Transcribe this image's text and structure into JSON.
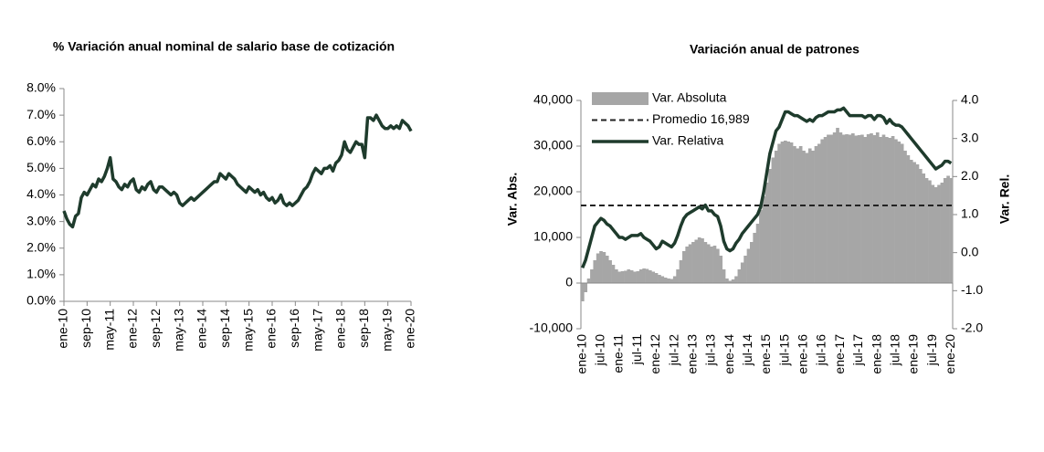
{
  "chart_data": [
    {
      "type": "line",
      "title": "% Variación anual nominal de salario base de cotización",
      "categories": [
        "ene-10",
        null,
        null,
        null,
        null,
        null,
        null,
        null,
        "sep-10",
        null,
        null,
        null,
        null,
        null,
        null,
        null,
        "may-11",
        null,
        null,
        null,
        null,
        null,
        null,
        null,
        "ene-12",
        null,
        null,
        null,
        null,
        null,
        null,
        null,
        "sep-12",
        null,
        null,
        null,
        null,
        null,
        null,
        null,
        "may-13",
        null,
        null,
        null,
        null,
        null,
        null,
        null,
        "ene-14",
        null,
        null,
        null,
        null,
        null,
        null,
        null,
        "sep-14",
        null,
        null,
        null,
        null,
        null,
        null,
        null,
        "may-15",
        null,
        null,
        null,
        null,
        null,
        null,
        null,
        "ene-16",
        null,
        null,
        null,
        null,
        null,
        null,
        null,
        "sep-16",
        null,
        null,
        null,
        null,
        null,
        null,
        null,
        "may-17",
        null,
        null,
        null,
        null,
        null,
        null,
        null,
        "ene-18",
        null,
        null,
        null,
        null,
        null,
        null,
        null,
        "sep-18",
        null,
        null,
        null,
        null,
        null,
        null,
        null,
        "may-19",
        null,
        null,
        null,
        null,
        null,
        null,
        null,
        "ene-20"
      ],
      "values": [
        3.4,
        3.1,
        2.9,
        2.8,
        3.2,
        3.3,
        3.9,
        4.1,
        4.0,
        4.2,
        4.4,
        4.3,
        4.6,
        4.5,
        4.7,
        5.0,
        5.4,
        4.6,
        4.5,
        4.3,
        4.2,
        4.4,
        4.3,
        4.5,
        4.6,
        4.2,
        4.1,
        4.3,
        4.2,
        4.4,
        4.5,
        4.2,
        4.1,
        4.3,
        4.3,
        4.2,
        4.1,
        4.0,
        4.1,
        4.0,
        3.7,
        3.6,
        3.7,
        3.8,
        3.9,
        3.8,
        3.9,
        4.0,
        4.1,
        4.2,
        4.3,
        4.4,
        4.5,
        4.5,
        4.8,
        4.7,
        4.6,
        4.8,
        4.7,
        4.6,
        4.4,
        4.3,
        4.2,
        4.1,
        4.3,
        4.2,
        4.1,
        4.2,
        4.0,
        4.1,
        3.9,
        3.8,
        3.9,
        3.7,
        3.8,
        4.0,
        3.7,
        3.6,
        3.7,
        3.6,
        3.7,
        3.8,
        4.0,
        4.2,
        4.3,
        4.5,
        4.8,
        5.0,
        4.9,
        4.8,
        5.0,
        5.0,
        5.1,
        4.9,
        5.2,
        5.3,
        5.5,
        6.0,
        5.7,
        5.6,
        5.8,
        6.0,
        5.9,
        5.9,
        5.4,
        6.9,
        6.9,
        6.8,
        7.0,
        6.8,
        6.6,
        6.5,
        6.5,
        6.6,
        6.5,
        6.6,
        6.5,
        6.8,
        6.7,
        6.6,
        6.4
      ],
      "color": "#1e3b2c",
      "ylim": [
        0,
        8
      ],
      "yticks": [
        {
          "value": 0,
          "label": "0.0%"
        },
        {
          "value": 1,
          "label": "1.0%"
        },
        {
          "value": 2,
          "label": "2.0%"
        },
        {
          "value": 3,
          "label": "3.0%"
        },
        {
          "value": 4,
          "label": "4.0%"
        },
        {
          "value": 5,
          "label": "5.0%"
        },
        {
          "value": 6,
          "label": "6.0%"
        },
        {
          "value": 7,
          "label": "7.0%"
        },
        {
          "value": 8,
          "label": "8.0%"
        }
      ],
      "grid": false
    },
    {
      "type": "combo",
      "title": "Variación anual de patrones",
      "y_label": "Var. Abs.",
      "y2_label": "Var. Rel.",
      "categories": [
        "ene-10",
        null,
        null,
        null,
        null,
        null,
        "jul-10",
        null,
        null,
        null,
        null,
        null,
        "ene-11",
        null,
        null,
        null,
        null,
        null,
        "jul-11",
        null,
        null,
        null,
        null,
        null,
        "ene-12",
        null,
        null,
        null,
        null,
        null,
        "jul-12",
        null,
        null,
        null,
        null,
        null,
        "ene-13",
        null,
        null,
        null,
        null,
        null,
        "jul-13",
        null,
        null,
        null,
        null,
        null,
        "ene-14",
        null,
        null,
        null,
        null,
        null,
        "jul-14",
        null,
        null,
        null,
        null,
        null,
        "ene-15",
        null,
        null,
        null,
        null,
        null,
        "jul-15",
        null,
        null,
        null,
        null,
        null,
        "ene-16",
        null,
        null,
        null,
        null,
        null,
        "jul-16",
        null,
        null,
        null,
        null,
        null,
        "ene-17",
        null,
        null,
        null,
        null,
        null,
        "jul-17",
        null,
        null,
        null,
        null,
        null,
        "ene-18",
        null,
        null,
        null,
        null,
        null,
        "jul-18",
        null,
        null,
        null,
        null,
        null,
        "ene-19",
        null,
        null,
        null,
        null,
        null,
        "jul-19",
        null,
        null,
        null,
        null,
        null,
        "ene-20"
      ],
      "series": [
        {
          "name": "Var. Absoluta",
          "type": "bar",
          "color": "#a6a6a6",
          "values": [
            -4000,
            -2000,
            1000,
            3000,
            5000,
            6500,
            7000,
            6800,
            6000,
            5000,
            4000,
            3000,
            2500,
            2600,
            2700,
            3000,
            2800,
            2500,
            2600,
            3000,
            3200,
            3100,
            2800,
            2500,
            2200,
            1800,
            1500,
            1200,
            1000,
            900,
            1500,
            3000,
            5000,
            7000,
            8000,
            8500,
            9000,
            9500,
            10000,
            9800,
            9000,
            8500,
            8000,
            8200,
            7500,
            6000,
            3000,
            1000,
            500,
            800,
            1500,
            3000,
            4500,
            6000,
            7500,
            9000,
            11000,
            13000,
            16000,
            19000,
            22000,
            25000,
            27500,
            29000,
            30500,
            31000,
            31200,
            31000,
            30800,
            30000,
            29500,
            30000,
            29000,
            28500,
            29500,
            29000,
            30000,
            30500,
            31500,
            32000,
            32500,
            32500,
            33000,
            34000,
            33000,
            32500,
            32600,
            32500,
            32800,
            32300,
            32400,
            32500,
            32000,
            32600,
            32800,
            32400,
            33000,
            32000,
            32500,
            32000,
            31800,
            32200,
            31500,
            31000,
            30500,
            29000,
            28000,
            27000,
            26500,
            26000,
            25000,
            24000,
            23000,
            22500,
            21500,
            21000,
            21500,
            22000,
            23000,
            23500,
            23000
          ]
        },
        {
          "name": "Var. Relativa",
          "type": "line",
          "axis": "y2",
          "color": "#1e3b2c",
          "values": [
            -0.4,
            -0.2,
            0.1,
            0.4,
            0.7,
            0.8,
            0.9,
            0.85,
            0.75,
            0.7,
            0.6,
            0.5,
            0.4,
            0.4,
            0.35,
            0.4,
            0.45,
            0.45,
            0.45,
            0.5,
            0.4,
            0.35,
            0.3,
            0.2,
            0.1,
            0.15,
            0.3,
            0.25,
            0.2,
            0.15,
            0.25,
            0.45,
            0.7,
            0.9,
            1.0,
            1.05,
            1.1,
            1.15,
            1.2,
            1.15,
            1.25,
            1.1,
            1.1,
            1.0,
            0.95,
            0.7,
            0.3,
            0.1,
            0.05,
            0.1,
            0.25,
            0.35,
            0.5,
            0.6,
            0.7,
            0.8,
            0.9,
            1.0,
            1.2,
            1.6,
            2.1,
            2.6,
            2.9,
            3.2,
            3.3,
            3.5,
            3.7,
            3.7,
            3.65,
            3.6,
            3.6,
            3.55,
            3.5,
            3.45,
            3.5,
            3.45,
            3.55,
            3.6,
            3.6,
            3.65,
            3.7,
            3.7,
            3.7,
            3.75,
            3.75,
            3.8,
            3.7,
            3.6,
            3.6,
            3.6,
            3.6,
            3.6,
            3.55,
            3.6,
            3.6,
            3.5,
            3.6,
            3.6,
            3.55,
            3.4,
            3.5,
            3.4,
            3.35,
            3.35,
            3.3,
            3.2,
            3.1,
            3.0,
            2.9,
            2.8,
            2.7,
            2.6,
            2.5,
            2.4,
            2.3,
            2.2,
            2.25,
            2.3,
            2.4,
            2.4,
            2.35
          ]
        }
      ],
      "reference_line": {
        "name": "Promedio 16,989",
        "value": 16989,
        "color": "#222222",
        "dashed": true
      },
      "ylim": [
        -10000,
        40000
      ],
      "yticks": [
        {
          "value": -10000,
          "label": "-10,000"
        },
        0,
        {
          "value": 10000,
          "label": "10,000"
        },
        {
          "value": 20000,
          "label": "20,000"
        },
        {
          "value": 30000,
          "label": "30,000"
        },
        {
          "value": 40000,
          "label": "40,000"
        }
      ],
      "y2lim": [
        -2,
        4
      ],
      "y2ticks": [
        {
          "value": -2,
          "label": "-2.0"
        },
        {
          "value": -1,
          "label": "-1.0"
        },
        {
          "value": 0,
          "label": "0.0"
        },
        {
          "value": 1,
          "label": "1.0"
        },
        {
          "value": 2,
          "label": "2.0"
        },
        {
          "value": 3,
          "label": "3.0"
        },
        {
          "value": 4,
          "label": "4.0"
        }
      ],
      "legend": "top-left",
      "grid": false
    }
  ]
}
